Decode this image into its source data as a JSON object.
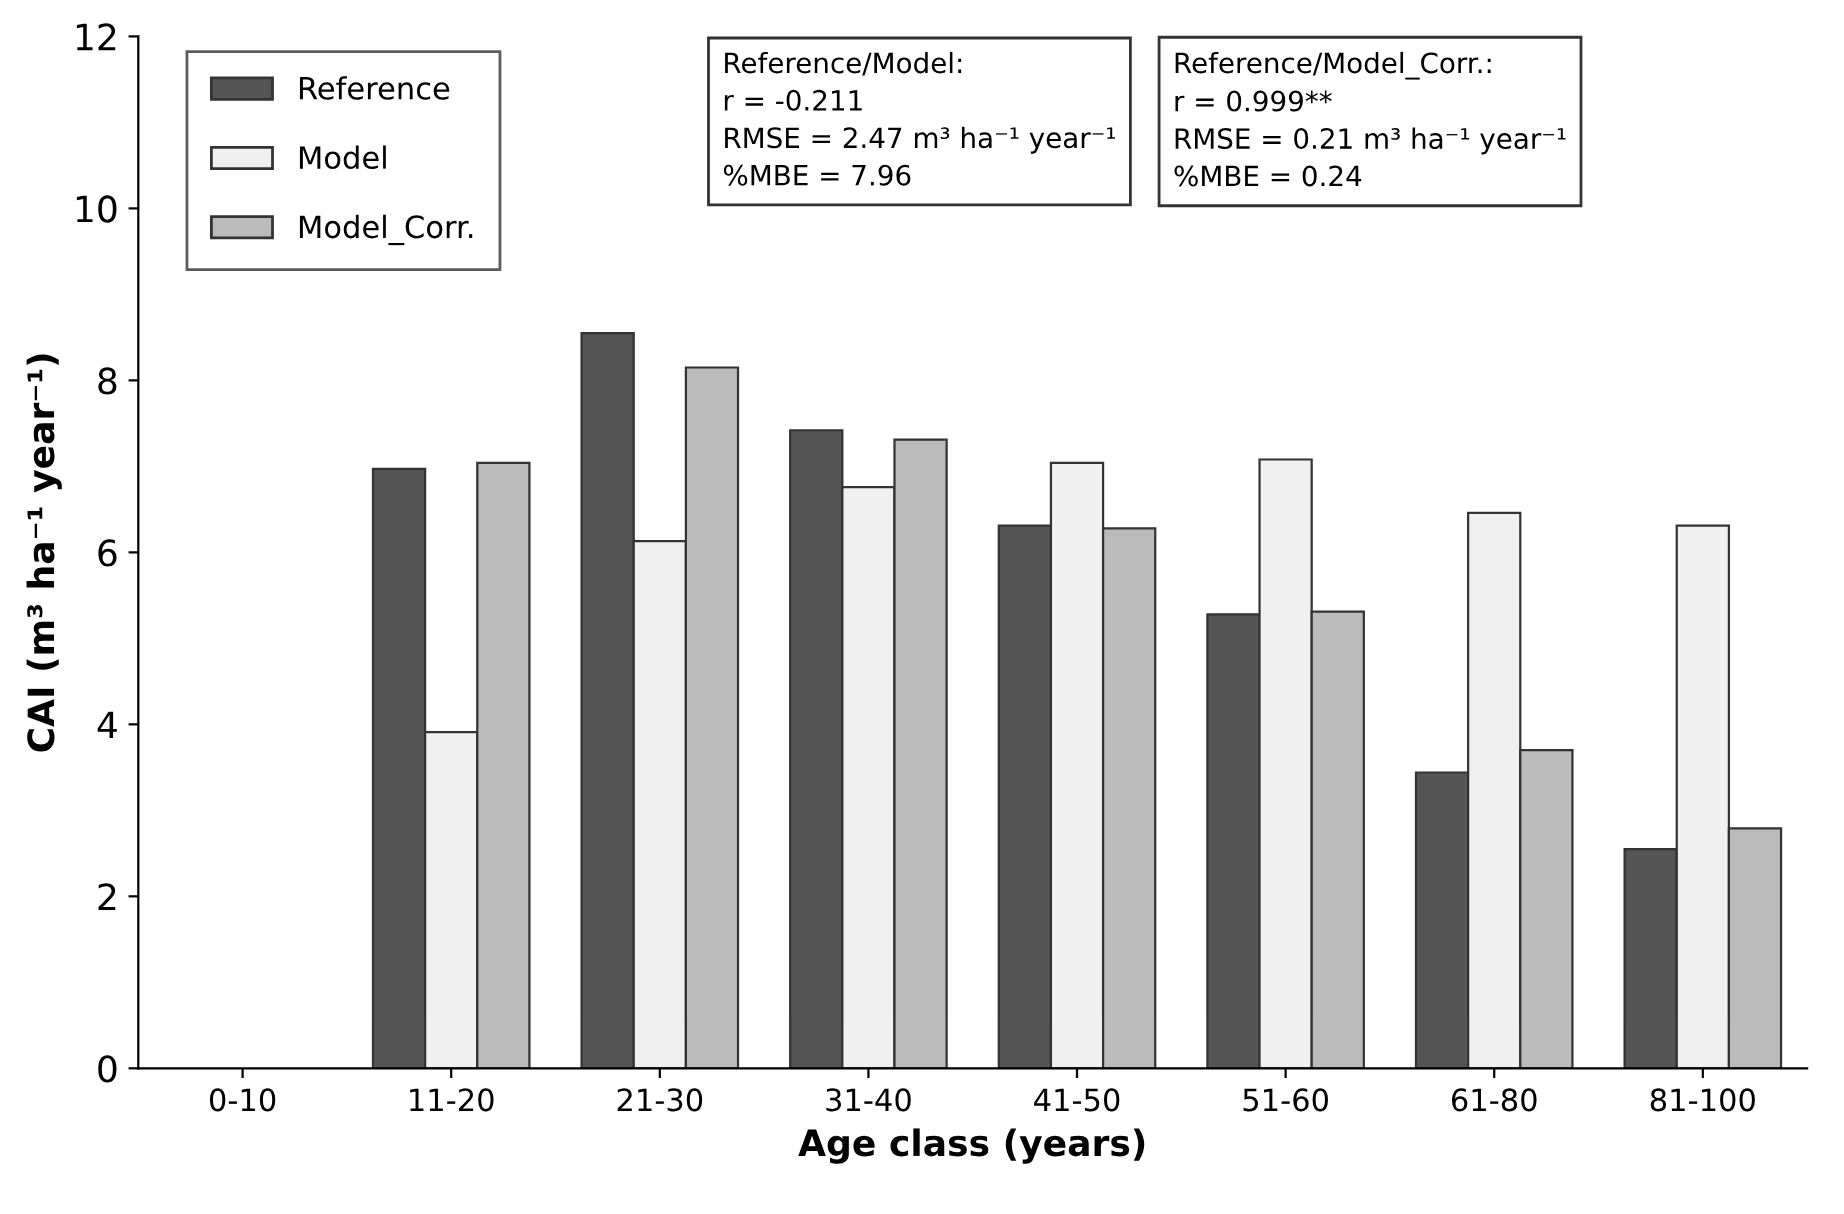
{
  "chart_data": {
    "type": "bar",
    "xlabel": "Age class (years)",
    "ylabel": "CAI (m³ ha⁻¹ year⁻¹)",
    "categories": [
      "0-10",
      "11-20",
      "21-30",
      "31-40",
      "41-50",
      "51-60",
      "61-80",
      "81-100"
    ],
    "series": [
      {
        "name": "Reference",
        "color": "#555555",
        "values": [
          null,
          6.97,
          8.55,
          7.42,
          6.31,
          5.28,
          3.44,
          2.55
        ]
      },
      {
        "name": "Model",
        "color": "#f0f0f0",
        "values": [
          null,
          3.91,
          6.13,
          6.76,
          7.04,
          7.08,
          6.46,
          6.31
        ]
      },
      {
        "name": "Model_Corr.",
        "color": "#bbbbbb",
        "values": [
          null,
          7.04,
          8.15,
          7.31,
          6.28,
          5.31,
          3.7,
          2.79
        ]
      }
    ],
    "ylim": [
      0,
      12
    ],
    "yticks": [
      0,
      2,
      4,
      6,
      8,
      10,
      12
    ],
    "grid": false,
    "legend": "top left",
    "annotations": [
      "Reference/Model:\nr = -0.211\nRMSE = 2.47 m³ ha⁻¹ year⁻¹\n%MBE = 7.96",
      "Reference/Model_Corr.:\nr = 0.999**\nRMSE = 0.21 m³ ha⁻¹ year⁻¹\n%MBE = 0.24"
    ]
  }
}
